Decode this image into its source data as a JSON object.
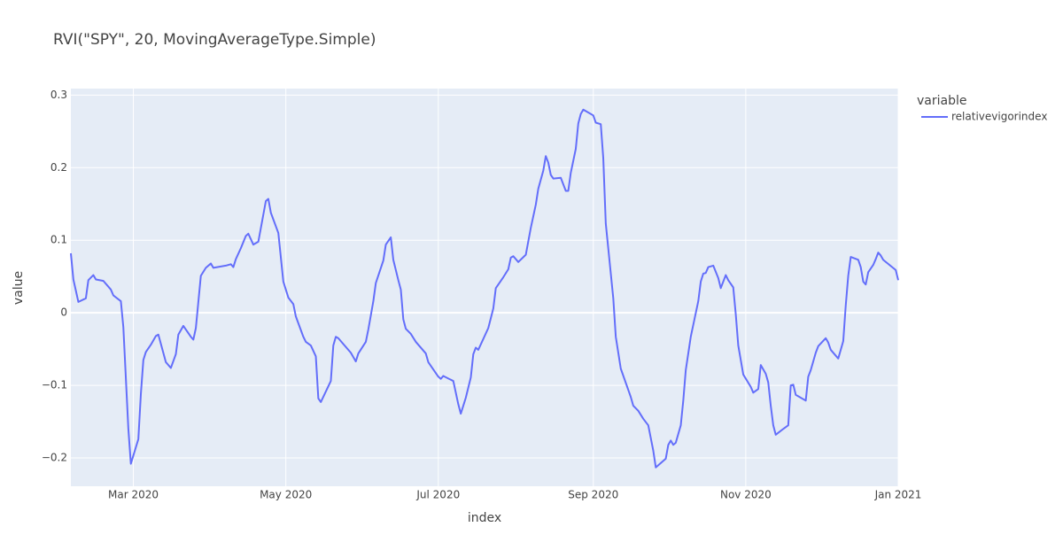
{
  "chart_data": {
    "type": "line",
    "title": "RVI(\"SPY\", 20, MovingAverageType.Simple)",
    "x_label": "index",
    "y_label": "value",
    "legend_title": "variable",
    "legend_position": "right",
    "grid": true,
    "xlim": [
      "2020-02-05",
      "2021-01-01"
    ],
    "xticks": [
      {
        "value": "2020-03-01",
        "label": "Mar 2020"
      },
      {
        "value": "2020-05-01",
        "label": "May 2020"
      },
      {
        "value": "2020-07-01",
        "label": "Jul 2020"
      },
      {
        "value": "2020-09-01",
        "label": "Sep 2020"
      },
      {
        "value": "2020-11-01",
        "label": "Nov 2020"
      },
      {
        "value": "2021-01-01",
        "label": "Jan 2021"
      }
    ],
    "ylim": [
      -0.239,
      0.309
    ],
    "yticks": [
      {
        "value": -0.2,
        "label": "−0.2"
      },
      {
        "value": -0.1,
        "label": "−0.1"
      },
      0,
      0.1,
      0.2,
      0.3
    ],
    "x": [
      "2020-02-05",
      "2020-02-06",
      "2020-02-08",
      "2020-02-11",
      "2020-02-12",
      "2020-02-14",
      "2020-02-15",
      "2020-02-18",
      "2020-02-21",
      "2020-02-22",
      "2020-02-25",
      "2020-02-26",
      "2020-02-28",
      "2020-02-29",
      "2020-03-03",
      "2020-03-04",
      "2020-03-05",
      "2020-03-06",
      "2020-03-08",
      "2020-03-10",
      "2020-03-11",
      "2020-03-14",
      "2020-03-16",
      "2020-03-18",
      "2020-03-19",
      "2020-03-21",
      "2020-03-24",
      "2020-03-25",
      "2020-03-26",
      "2020-03-28",
      "2020-03-30",
      "2020-04-01",
      "2020-04-02",
      "2020-04-07",
      "2020-04-09",
      "2020-04-10",
      "2020-04-11",
      "2020-04-13",
      "2020-04-15",
      "2020-04-16",
      "2020-04-18",
      "2020-04-20",
      "2020-04-23",
      "2020-04-24",
      "2020-04-25",
      "2020-04-28",
      "2020-04-30",
      "2020-05-02",
      "2020-05-04",
      "2020-05-05",
      "2020-05-08",
      "2020-05-09",
      "2020-05-11",
      "2020-05-13",
      "2020-05-14",
      "2020-05-15",
      "2020-05-19",
      "2020-05-20",
      "2020-05-21",
      "2020-05-22",
      "2020-05-27",
      "2020-05-29",
      "2020-05-30",
      "2020-06-02",
      "2020-06-03",
      "2020-06-05",
      "2020-06-06",
      "2020-06-09",
      "2020-06-10",
      "2020-06-12",
      "2020-06-13",
      "2020-06-15",
      "2020-06-16",
      "2020-06-17",
      "2020-06-18",
      "2020-06-20",
      "2020-06-22",
      "2020-06-26",
      "2020-06-27",
      "2020-07-01",
      "2020-07-02",
      "2020-07-03",
      "2020-07-07",
      "2020-07-09",
      "2020-07-10",
      "2020-07-12",
      "2020-07-14",
      "2020-07-15",
      "2020-07-16",
      "2020-07-17",
      "2020-07-21",
      "2020-07-23",
      "2020-07-24",
      "2020-07-27",
      "2020-07-29",
      "2020-07-30",
      "2020-07-31",
      "2020-08-02",
      "2020-08-05",
      "2020-08-07",
      "2020-08-09",
      "2020-08-10",
      "2020-08-12",
      "2020-08-13",
      "2020-08-14",
      "2020-08-15",
      "2020-08-16",
      "2020-08-19",
      "2020-08-21",
      "2020-08-22",
      "2020-08-23",
      "2020-08-25",
      "2020-08-26",
      "2020-08-27",
      "2020-08-28",
      "2020-09-01",
      "2020-09-02",
      "2020-09-04",
      "2020-09-05",
      "2020-09-06",
      "2020-09-09",
      "2020-09-10",
      "2020-09-12",
      "2020-09-16",
      "2020-09-17",
      "2020-09-19",
      "2020-09-21",
      "2020-09-23",
      "2020-09-25",
      "2020-09-26",
      "2020-09-30",
      "2020-10-01",
      "2020-10-02",
      "2020-10-03",
      "2020-10-04",
      "2020-10-06",
      "2020-10-07",
      "2020-10-08",
      "2020-10-10",
      "2020-10-13",
      "2020-10-14",
      "2020-10-15",
      "2020-10-16",
      "2020-10-17",
      "2020-10-19",
      "2020-10-21",
      "2020-10-22",
      "2020-10-24",
      "2020-10-25",
      "2020-10-27",
      "2020-10-28",
      "2020-10-29",
      "2020-10-31",
      "2020-11-03",
      "2020-11-04",
      "2020-11-06",
      "2020-11-07",
      "2020-11-09",
      "2020-11-10",
      "2020-11-11",
      "2020-11-12",
      "2020-11-13",
      "2020-11-16",
      "2020-11-18",
      "2020-11-19",
      "2020-11-20",
      "2020-11-21",
      "2020-11-25",
      "2020-11-26",
      "2020-11-27",
      "2020-11-29",
      "2020-11-30",
      "2020-12-03",
      "2020-12-04",
      "2020-12-05",
      "2020-12-08",
      "2020-12-10",
      "2020-12-11",
      "2020-12-12",
      "2020-12-13",
      "2020-12-16",
      "2020-12-17",
      "2020-12-18",
      "2020-12-19",
      "2020-12-20",
      "2020-12-22",
      "2020-12-23",
      "2020-12-24",
      "2020-12-25",
      "2020-12-26",
      "2020-12-31",
      "2021-01-01"
    ],
    "series": [
      {
        "name": "relativevigorindex",
        "color": "#636efa",
        "values": [
          0.082,
          0.046,
          0.015,
          0.02,
          0.045,
          0.052,
          0.046,
          0.044,
          0.032,
          0.024,
          0.016,
          -0.02,
          -0.16,
          -0.208,
          -0.174,
          -0.112,
          -0.065,
          -0.054,
          -0.044,
          -0.032,
          -0.03,
          -0.068,
          -0.076,
          -0.057,
          -0.03,
          -0.018,
          -0.033,
          -0.037,
          -0.021,
          0.051,
          0.062,
          0.068,
          0.062,
          0.065,
          0.067,
          0.063,
          0.074,
          0.089,
          0.106,
          0.109,
          0.094,
          0.098,
          0.154,
          0.157,
          0.138,
          0.11,
          0.043,
          0.021,
          0.012,
          -0.005,
          -0.033,
          -0.04,
          -0.045,
          -0.06,
          -0.118,
          -0.123,
          -0.094,
          -0.045,
          -0.033,
          -0.035,
          -0.055,
          -0.067,
          -0.056,
          -0.04,
          -0.023,
          0.016,
          0.041,
          0.072,
          0.094,
          0.104,
          0.073,
          0.045,
          0.032,
          -0.009,
          -0.022,
          -0.029,
          -0.04,
          -0.056,
          -0.068,
          -0.088,
          -0.091,
          -0.087,
          -0.094,
          -0.126,
          -0.139,
          -0.117,
          -0.089,
          -0.057,
          -0.048,
          -0.051,
          -0.021,
          0.006,
          0.034,
          0.049,
          0.06,
          0.076,
          0.078,
          0.07,
          0.08,
          0.117,
          0.149,
          0.171,
          0.196,
          0.216,
          0.207,
          0.19,
          0.185,
          0.186,
          0.168,
          0.168,
          0.193,
          0.226,
          0.261,
          0.274,
          0.28,
          0.272,
          0.262,
          0.26,
          0.213,
          0.123,
          0.02,
          -0.033,
          -0.077,
          -0.116,
          -0.128,
          -0.135,
          -0.146,
          -0.155,
          -0.19,
          -0.213,
          -0.201,
          -0.182,
          -0.176,
          -0.182,
          -0.179,
          -0.155,
          -0.121,
          -0.079,
          -0.033,
          0.016,
          0.043,
          0.054,
          0.055,
          0.063,
          0.065,
          0.048,
          0.034,
          0.052,
          0.045,
          0.035,
          -0.002,
          -0.045,
          -0.085,
          -0.102,
          -0.11,
          -0.105,
          -0.072,
          -0.084,
          -0.096,
          -0.128,
          -0.155,
          -0.168,
          -0.16,
          -0.155,
          -0.1,
          -0.099,
          -0.113,
          -0.121,
          -0.088,
          -0.079,
          -0.055,
          -0.046,
          -0.035,
          -0.041,
          -0.051,
          -0.063,
          -0.039,
          0.01,
          0.051,
          0.077,
          0.073,
          0.063,
          0.043,
          0.039,
          0.056,
          0.066,
          0.074,
          0.083,
          0.079,
          0.073,
          0.059,
          0.045
        ]
      }
    ]
  }
}
